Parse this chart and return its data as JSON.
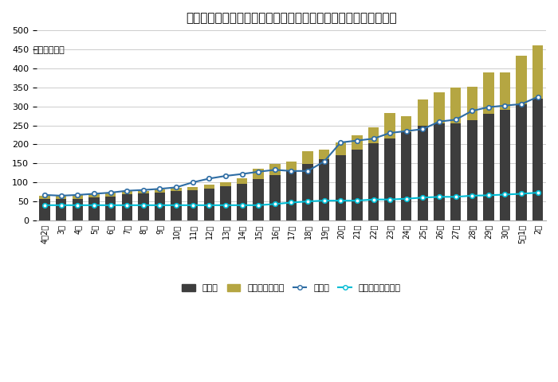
{
  "title": "【日本国内における新型コロナウイルスの死者および重症者数】",
  "unit_label": "（単位：人）",
  "x_labels": [
    "4月2日",
    "3日",
    "4日",
    "5日",
    "6日",
    "7日",
    "8日",
    "9日",
    "10日",
    "11日",
    "12日",
    "13日",
    "14日",
    "15日",
    "16日",
    "17日",
    "18日",
    "19日",
    "20日",
    "21日",
    "22日",
    "23日",
    "24日",
    "25日",
    "26日",
    "27日",
    "28日",
    "29日",
    "30日",
    "5月1日",
    "2日"
  ],
  "deaths": [
    57,
    56,
    57,
    60,
    63,
    68,
    70,
    73,
    77,
    80,
    84,
    89,
    97,
    108,
    120,
    132,
    148,
    162,
    172,
    186,
    203,
    215,
    232,
    248,
    256,
    256,
    264,
    280,
    290,
    305,
    320
  ],
  "critical_active": [
    8,
    8,
    10,
    10,
    10,
    10,
    8,
    8,
    8,
    8,
    10,
    12,
    13,
    27,
    28,
    22,
    35,
    25,
    32,
    38,
    42,
    68,
    42,
    70,
    80,
    94,
    88,
    110,
    100,
    128,
    140
  ],
  "severe": [
    67,
    65,
    67,
    70,
    73,
    78,
    80,
    83,
    87,
    100,
    110,
    117,
    122,
    128,
    133,
    130,
    130,
    155,
    205,
    210,
    215,
    230,
    235,
    240,
    260,
    265,
    288,
    298,
    302,
    306,
    325
  ],
  "recovered_severe": [
    40,
    40,
    40,
    40,
    40,
    40,
    40,
    40,
    40,
    40,
    40,
    40,
    40,
    40,
    43,
    47,
    50,
    52,
    52,
    52,
    55,
    55,
    57,
    60,
    62,
    62,
    65,
    66,
    68,
    70,
    73
  ],
  "death_color": "#3d3d3d",
  "critical_color": "#b5a642",
  "severe_line_color": "#2e6da4",
  "recovered_line_color": "#00bcd4",
  "ylim": [
    0,
    500
  ],
  "yticks": [
    0,
    50,
    100,
    150,
    200,
    250,
    300,
    350,
    400,
    450,
    500
  ],
  "background_color": "#ffffff",
  "legend_labels": [
    "死亡者",
    "死者（突合中）",
    "重症者",
    "重症からの改善者"
  ]
}
